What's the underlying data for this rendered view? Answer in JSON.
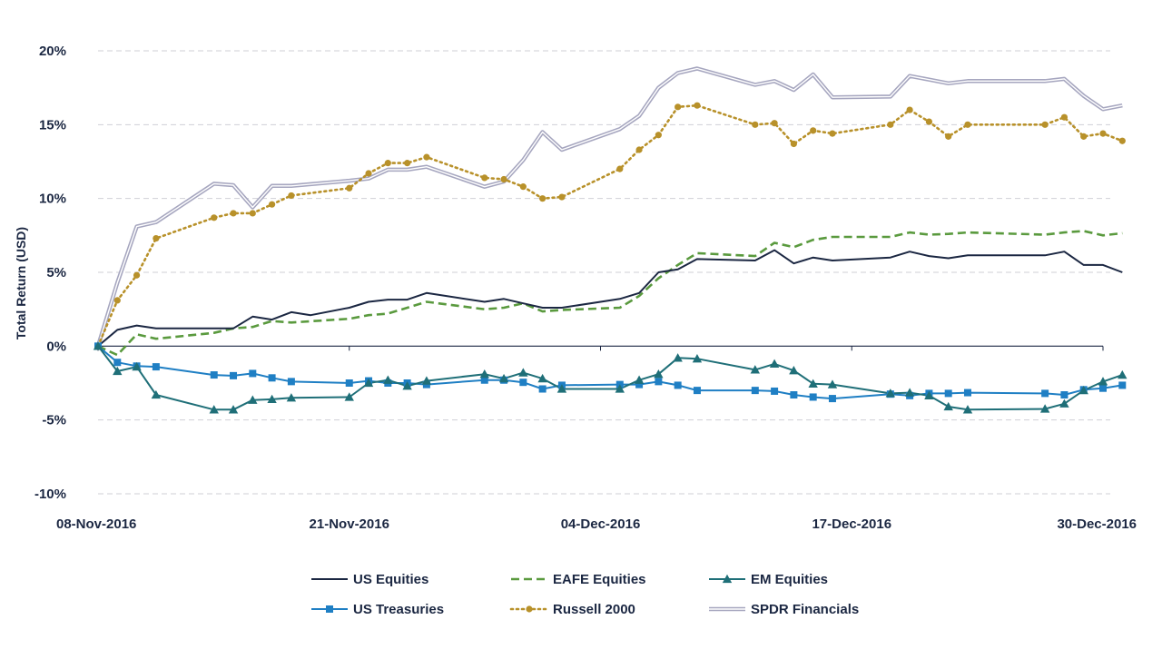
{
  "chart_data": {
    "type": "line",
    "title": "",
    "xlabel": "",
    "ylabel": "Total Return (USD)",
    "ylim": [
      -10,
      20
    ],
    "y_ticks": [
      -10,
      -5,
      0,
      5,
      10,
      15,
      20
    ],
    "y_tick_labels": [
      "-10%",
      "-5%",
      "0%",
      "5%",
      "10%",
      "15%",
      "20%"
    ],
    "x_range": [
      "2016-11-08",
      "2016-12-30"
    ],
    "x_ticks": [
      "2016-11-08",
      "2016-11-21",
      "2016-12-04",
      "2016-12-17",
      "2016-12-30"
    ],
    "x_tick_labels": [
      "08-Nov-2016",
      "21-Nov-2016",
      "04-Dec-2016",
      "17-Dec-2016",
      "30-Dec-2016"
    ],
    "grid": "horizontal dashed",
    "legend_position": "bottom",
    "series": [
      {
        "name": "US Equities",
        "color": "#1b2742",
        "line_style": "solid",
        "marker": "none",
        "points": [
          [
            "2016-11-08",
            0.0
          ],
          [
            "2016-11-09",
            1.1
          ],
          [
            "2016-11-10",
            1.4
          ],
          [
            "2016-11-11",
            1.2
          ],
          [
            "2016-11-14",
            1.2
          ],
          [
            "2016-11-15",
            1.2
          ],
          [
            "2016-11-16",
            2.0
          ],
          [
            "2016-11-17",
            1.8
          ],
          [
            "2016-11-18",
            2.3
          ],
          [
            "2016-11-19",
            2.1
          ],
          [
            "2016-11-21",
            2.6
          ],
          [
            "2016-11-22",
            3.0
          ],
          [
            "2016-11-23",
            3.15
          ],
          [
            "2016-11-24",
            3.15
          ],
          [
            "2016-11-25",
            3.6
          ],
          [
            "2016-11-28",
            3.0
          ],
          [
            "2016-11-29",
            3.2
          ],
          [
            "2016-11-30",
            2.9
          ],
          [
            "2016-12-01",
            2.6
          ],
          [
            "2016-12-02",
            2.6
          ],
          [
            "2016-12-05",
            3.2
          ],
          [
            "2016-12-06",
            3.6
          ],
          [
            "2016-12-07",
            5.0
          ],
          [
            "2016-12-08",
            5.2
          ],
          [
            "2016-12-09",
            5.9
          ],
          [
            "2016-12-12",
            5.8
          ],
          [
            "2016-12-13",
            6.5
          ],
          [
            "2016-12-14",
            5.6
          ],
          [
            "2016-12-15",
            6.0
          ],
          [
            "2016-12-16",
            5.8
          ],
          [
            "2016-12-19",
            6.0
          ],
          [
            "2016-12-20",
            6.4
          ],
          [
            "2016-12-21",
            6.1
          ],
          [
            "2016-12-22",
            5.95
          ],
          [
            "2016-12-23",
            6.15
          ],
          [
            "2016-12-27",
            6.15
          ],
          [
            "2016-12-28",
            6.4
          ],
          [
            "2016-12-29",
            5.5
          ],
          [
            "2016-12-30",
            5.5
          ],
          [
            "2016-12-31",
            5.0
          ]
        ]
      },
      {
        "name": "EAFE Equities",
        "color": "#5a9a3e",
        "line_style": "dashed",
        "marker": "none",
        "points": [
          [
            "2016-11-08",
            0.0
          ],
          [
            "2016-11-09",
            -0.6
          ],
          [
            "2016-11-10",
            0.8
          ],
          [
            "2016-11-11",
            0.5
          ],
          [
            "2016-11-14",
            0.9
          ],
          [
            "2016-11-15",
            1.2
          ],
          [
            "2016-11-16",
            1.3
          ],
          [
            "2016-11-17",
            1.7
          ],
          [
            "2016-11-18",
            1.6
          ],
          [
            "2016-11-21",
            1.85
          ],
          [
            "2016-11-22",
            2.1
          ],
          [
            "2016-11-23",
            2.2
          ],
          [
            "2016-11-25",
            3.0
          ],
          [
            "2016-11-28",
            2.5
          ],
          [
            "2016-11-29",
            2.6
          ],
          [
            "2016-11-30",
            2.9
          ],
          [
            "2016-12-01",
            2.35
          ],
          [
            "2016-12-02",
            2.45
          ],
          [
            "2016-12-05",
            2.6
          ],
          [
            "2016-12-06",
            3.4
          ],
          [
            "2016-12-07",
            4.6
          ],
          [
            "2016-12-08",
            5.5
          ],
          [
            "2016-12-09",
            6.3
          ],
          [
            "2016-12-12",
            6.1
          ],
          [
            "2016-12-13",
            7.0
          ],
          [
            "2016-12-14",
            6.7
          ],
          [
            "2016-12-15",
            7.2
          ],
          [
            "2016-12-16",
            7.4
          ],
          [
            "2016-12-19",
            7.4
          ],
          [
            "2016-12-20",
            7.7
          ],
          [
            "2016-12-21",
            7.55
          ],
          [
            "2016-12-22",
            7.6
          ],
          [
            "2016-12-23",
            7.7
          ],
          [
            "2016-12-27",
            7.55
          ],
          [
            "2016-12-28",
            7.7
          ],
          [
            "2016-12-29",
            7.8
          ],
          [
            "2016-12-30",
            7.5
          ],
          [
            "2016-12-31",
            7.65
          ]
        ]
      },
      {
        "name": "EM Equities",
        "color": "#1f6f78",
        "line_style": "solid",
        "marker": "triangle",
        "points": [
          [
            "2016-11-08",
            0.0
          ],
          [
            "2016-11-09",
            -1.7
          ],
          [
            "2016-11-10",
            -1.4
          ],
          [
            "2016-11-11",
            -3.3
          ],
          [
            "2016-11-14",
            -4.3
          ],
          [
            "2016-11-15",
            -4.3
          ],
          [
            "2016-11-16",
            -3.65
          ],
          [
            "2016-11-17",
            -3.6
          ],
          [
            "2016-11-18",
            -3.5
          ],
          [
            "2016-11-21",
            -3.45
          ],
          [
            "2016-11-22",
            -2.5
          ],
          [
            "2016-11-23",
            -2.3
          ],
          [
            "2016-11-24",
            -2.7
          ],
          [
            "2016-11-25",
            -2.35
          ],
          [
            "2016-11-28",
            -1.9
          ],
          [
            "2016-11-29",
            -2.2
          ],
          [
            "2016-11-30",
            -1.8
          ],
          [
            "2016-12-01",
            -2.2
          ],
          [
            "2016-12-02",
            -2.9
          ],
          [
            "2016-12-05",
            -2.9
          ],
          [
            "2016-12-06",
            -2.3
          ],
          [
            "2016-12-07",
            -1.9
          ],
          [
            "2016-12-08",
            -0.8
          ],
          [
            "2016-12-09",
            -0.85
          ],
          [
            "2016-12-12",
            -1.6
          ],
          [
            "2016-12-13",
            -1.2
          ],
          [
            "2016-12-14",
            -1.65
          ],
          [
            "2016-12-15",
            -2.55
          ],
          [
            "2016-12-16",
            -2.6
          ],
          [
            "2016-12-19",
            -3.2
          ],
          [
            "2016-12-20",
            -3.15
          ],
          [
            "2016-12-21",
            -3.35
          ],
          [
            "2016-12-22",
            -4.1
          ],
          [
            "2016-12-23",
            -4.3
          ],
          [
            "2016-12-27",
            -4.25
          ],
          [
            "2016-12-28",
            -3.9
          ],
          [
            "2016-12-29",
            -3.0
          ],
          [
            "2016-12-30",
            -2.4
          ],
          [
            "2016-12-31",
            -1.95
          ]
        ]
      },
      {
        "name": "US Treasuries",
        "color": "#1f7fc4",
        "line_style": "solid",
        "marker": "square",
        "points": [
          [
            "2016-11-08",
            0.0
          ],
          [
            "2016-11-09",
            -1.1
          ],
          [
            "2016-11-10",
            -1.35
          ],
          [
            "2016-11-11",
            -1.4
          ],
          [
            "2016-11-14",
            -1.95
          ],
          [
            "2016-11-15",
            -2.0
          ],
          [
            "2016-11-16",
            -1.85
          ],
          [
            "2016-11-17",
            -2.15
          ],
          [
            "2016-11-18",
            -2.4
          ],
          [
            "2016-11-21",
            -2.5
          ],
          [
            "2016-11-22",
            -2.35
          ],
          [
            "2016-11-23",
            -2.5
          ],
          [
            "2016-11-24",
            -2.5
          ],
          [
            "2016-11-25",
            -2.6
          ],
          [
            "2016-11-28",
            -2.3
          ],
          [
            "2016-11-29",
            -2.3
          ],
          [
            "2016-11-30",
            -2.45
          ],
          [
            "2016-12-01",
            -2.9
          ],
          [
            "2016-12-02",
            -2.65
          ],
          [
            "2016-12-05",
            -2.6
          ],
          [
            "2016-12-06",
            -2.6
          ],
          [
            "2016-12-07",
            -2.4
          ],
          [
            "2016-12-08",
            -2.65
          ],
          [
            "2016-12-09",
            -3.0
          ],
          [
            "2016-12-12",
            -3.0
          ],
          [
            "2016-12-13",
            -3.05
          ],
          [
            "2016-12-14",
            -3.3
          ],
          [
            "2016-12-15",
            -3.45
          ],
          [
            "2016-12-16",
            -3.55
          ],
          [
            "2016-12-19",
            -3.25
          ],
          [
            "2016-12-20",
            -3.35
          ],
          [
            "2016-12-21",
            -3.2
          ],
          [
            "2016-12-22",
            -3.2
          ],
          [
            "2016-12-23",
            -3.15
          ],
          [
            "2016-12-27",
            -3.2
          ],
          [
            "2016-12-28",
            -3.3
          ],
          [
            "2016-12-29",
            -2.95
          ],
          [
            "2016-12-30",
            -2.85
          ],
          [
            "2016-12-31",
            -2.65
          ]
        ]
      },
      {
        "name": "Russell 2000",
        "color": "#b8912a",
        "line_style": "dotted",
        "marker": "circle",
        "points": [
          [
            "2016-11-08",
            0.0
          ],
          [
            "2016-11-09",
            3.1
          ],
          [
            "2016-11-10",
            4.8
          ],
          [
            "2016-11-11",
            7.3
          ],
          [
            "2016-11-14",
            8.7
          ],
          [
            "2016-11-15",
            9.0
          ],
          [
            "2016-11-16",
            9.0
          ],
          [
            "2016-11-17",
            9.6
          ],
          [
            "2016-11-18",
            10.2
          ],
          [
            "2016-11-21",
            10.7
          ],
          [
            "2016-11-22",
            11.7
          ],
          [
            "2016-11-23",
            12.4
          ],
          [
            "2016-11-24",
            12.4
          ],
          [
            "2016-11-25",
            12.8
          ],
          [
            "2016-11-28",
            11.4
          ],
          [
            "2016-11-29",
            11.3
          ],
          [
            "2016-11-30",
            10.8
          ],
          [
            "2016-12-01",
            10.0
          ],
          [
            "2016-12-02",
            10.1
          ],
          [
            "2016-12-05",
            12.0
          ],
          [
            "2016-12-06",
            13.3
          ],
          [
            "2016-12-07",
            14.3
          ],
          [
            "2016-12-08",
            16.2
          ],
          [
            "2016-12-09",
            16.3
          ],
          [
            "2016-12-12",
            15.0
          ],
          [
            "2016-12-13",
            15.1
          ],
          [
            "2016-12-14",
            13.7
          ],
          [
            "2016-12-15",
            14.6
          ],
          [
            "2016-12-16",
            14.4
          ],
          [
            "2016-12-19",
            15.0
          ],
          [
            "2016-12-20",
            16.0
          ],
          [
            "2016-12-21",
            15.2
          ],
          [
            "2016-12-22",
            14.2
          ],
          [
            "2016-12-23",
            15.0
          ],
          [
            "2016-12-27",
            15.0
          ],
          [
            "2016-12-28",
            15.5
          ],
          [
            "2016-12-29",
            14.2
          ],
          [
            "2016-12-30",
            14.4
          ],
          [
            "2016-12-31",
            13.9
          ]
        ]
      },
      {
        "name": "SPDR Financials",
        "color": "#a6a6bf",
        "line_style": "double",
        "marker": "none",
        "points": [
          [
            "2016-11-08",
            0.0
          ],
          [
            "2016-11-09",
            4.3
          ],
          [
            "2016-11-10",
            8.1
          ],
          [
            "2016-11-11",
            8.4
          ],
          [
            "2016-11-14",
            11.0
          ],
          [
            "2016-11-15",
            10.9
          ],
          [
            "2016-11-16",
            9.4
          ],
          [
            "2016-11-17",
            10.85
          ],
          [
            "2016-11-18",
            10.85
          ],
          [
            "2016-11-21",
            11.2
          ],
          [
            "2016-11-22",
            11.35
          ],
          [
            "2016-11-23",
            11.95
          ],
          [
            "2016-11-24",
            11.95
          ],
          [
            "2016-11-25",
            12.15
          ],
          [
            "2016-11-28",
            10.8
          ],
          [
            "2016-11-29",
            11.15
          ],
          [
            "2016-11-30",
            12.6
          ],
          [
            "2016-12-01",
            14.5
          ],
          [
            "2016-12-02",
            13.3
          ],
          [
            "2016-12-05",
            14.7
          ],
          [
            "2016-12-06",
            15.6
          ],
          [
            "2016-12-07",
            17.5
          ],
          [
            "2016-12-08",
            18.5
          ],
          [
            "2016-12-09",
            18.8
          ],
          [
            "2016-12-12",
            17.7
          ],
          [
            "2016-12-13",
            17.95
          ],
          [
            "2016-12-14",
            17.35
          ],
          [
            "2016-12-15",
            18.4
          ],
          [
            "2016-12-16",
            16.85
          ],
          [
            "2016-12-19",
            16.9
          ],
          [
            "2016-12-20",
            18.3
          ],
          [
            "2016-12-21",
            18.05
          ],
          [
            "2016-12-22",
            17.8
          ],
          [
            "2016-12-23",
            17.95
          ],
          [
            "2016-12-27",
            17.95
          ],
          [
            "2016-12-28",
            18.1
          ],
          [
            "2016-12-29",
            16.95
          ],
          [
            "2016-12-30",
            16.05
          ],
          [
            "2016-12-31",
            16.3
          ]
        ]
      }
    ]
  }
}
